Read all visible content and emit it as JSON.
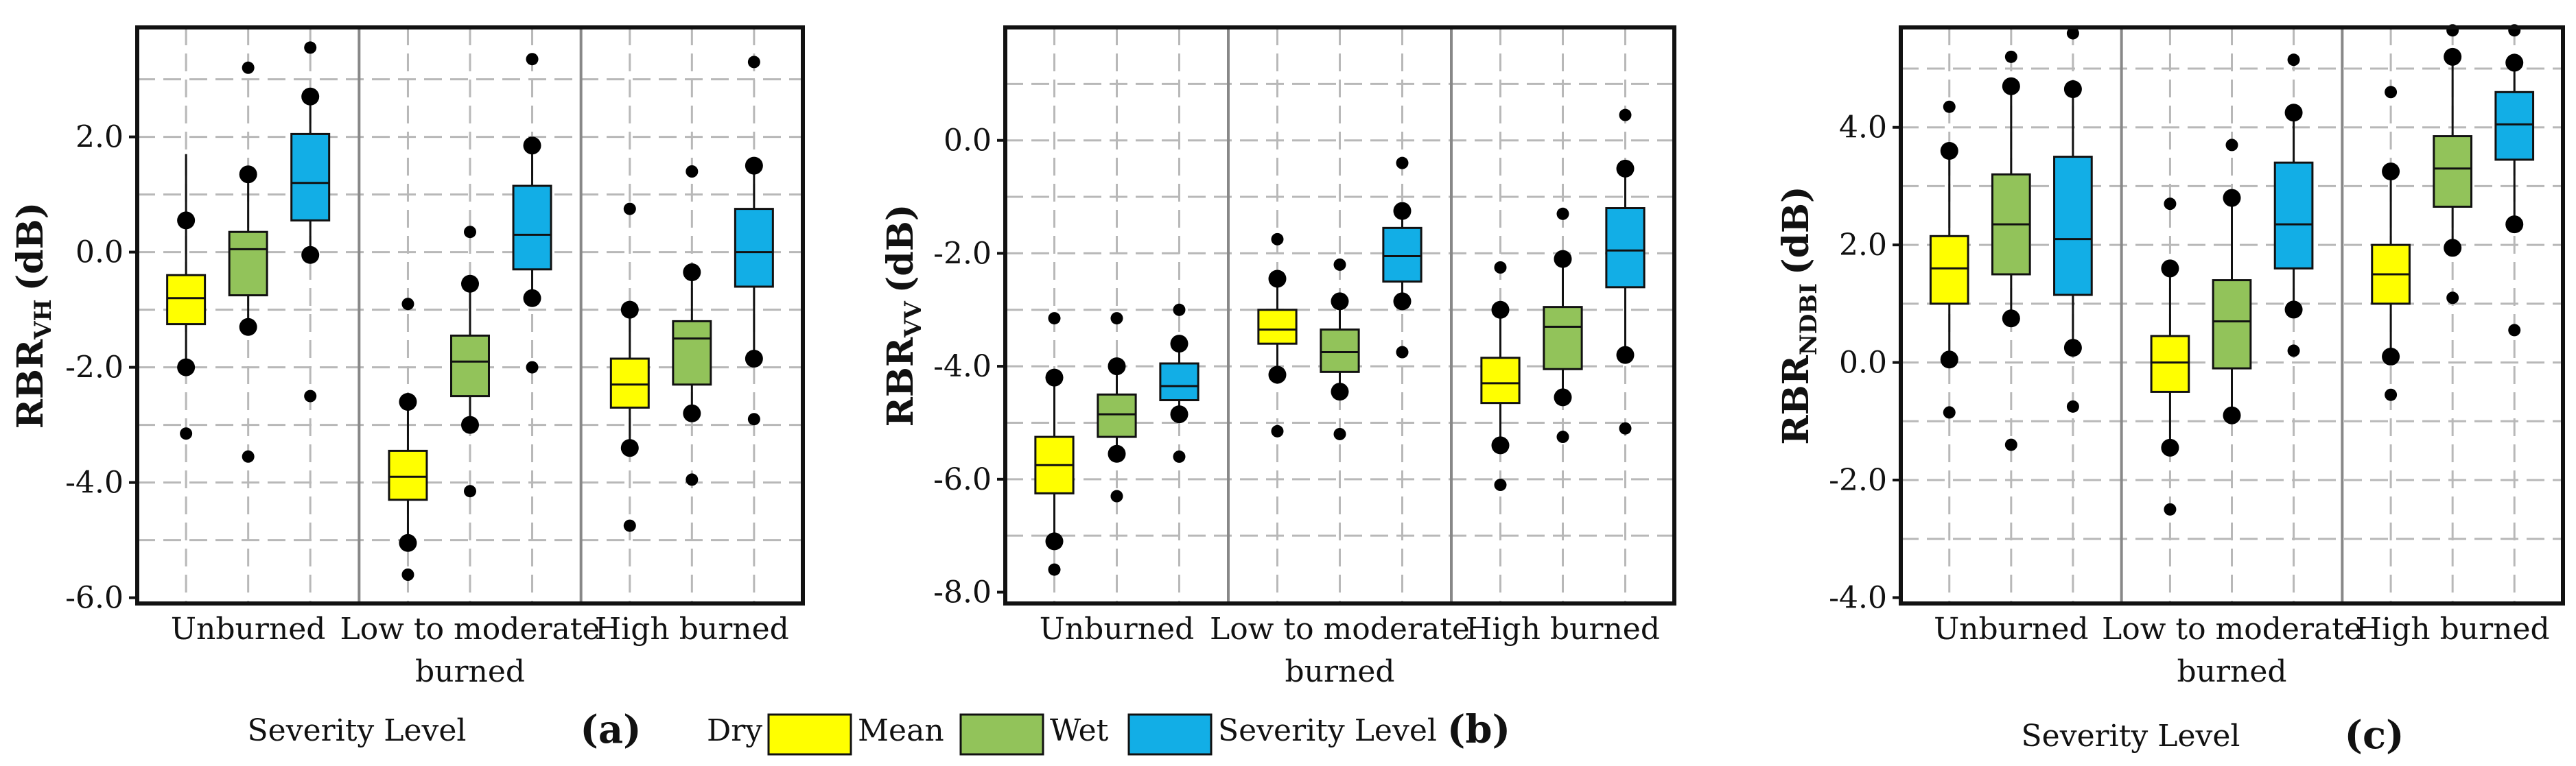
{
  "colors": {
    "dry": "#ffff00",
    "wet": "#92c35a",
    "severity": "#12aee6"
  },
  "legend": {
    "items": [
      {
        "label": "Dry",
        "swatch": ""
      },
      {
        "label": "Mean",
        "swatch": "#ffff00"
      },
      {
        "label": "Wet",
        "swatch": "#92c35a"
      },
      {
        "label": "Severity Level",
        "swatch": "#12aee6"
      }
    ]
  },
  "chart_data": [
    {
      "type": "box",
      "panel": "(a)",
      "ylabel_main": "RBR",
      "ylabel_sub": "VH",
      "ylabel_unit": "(dB)",
      "xlabel": "Severity Level",
      "ylim": [
        -6.1,
        3.9
      ],
      "yticks": [
        2.0,
        0.0,
        -2.0,
        -4.0,
        -6.0
      ],
      "ytick_labels": [
        "2.0",
        "0.0",
        "-2.0",
        "-4.0",
        "-6.0"
      ],
      "grid_y": [
        3,
        2,
        1,
        0,
        -1,
        -2,
        -3,
        -4,
        -5
      ],
      "category_label_lines": [
        [
          "Unburned"
        ],
        [
          "Low to moderate",
          "burned"
        ],
        [
          "High burned"
        ]
      ],
      "series_names": [
        "Dry",
        "Wet",
        "Severity"
      ],
      "groups": [
        {
          "boxes": [
            {
              "q1": -1.25,
              "median": -0.8,
              "q3": -0.4,
              "wlow": -2.0,
              "whigh": 1.7,
              "big": [
                0.55,
                -2.0
              ],
              "small": [
                -3.15
              ]
            },
            {
              "q1": -0.75,
              "median": 0.05,
              "q3": 0.35,
              "wlow": -1.3,
              "whigh": 1.35,
              "big": [
                1.35,
                -1.3
              ],
              "small": [
                3.2,
                -3.55
              ]
            },
            {
              "q1": 0.55,
              "median": 1.2,
              "q3": 2.05,
              "wlow": -0.05,
              "whigh": 2.7,
              "big": [
                2.7,
                -0.05
              ],
              "small": [
                3.55,
                -2.5
              ]
            }
          ]
        },
        {
          "boxes": [
            {
              "q1": -4.3,
              "median": -3.9,
              "q3": -3.45,
              "wlow": -5.05,
              "whigh": -2.6,
              "big": [
                -2.6,
                -5.05
              ],
              "small": [
                -0.9,
                -5.6
              ]
            },
            {
              "q1": -2.5,
              "median": -1.9,
              "q3": -1.45,
              "wlow": -3.0,
              "whigh": -0.55,
              "big": [
                -0.55,
                -3.0
              ],
              "small": [
                0.35,
                -4.15
              ]
            },
            {
              "q1": -0.3,
              "median": 0.3,
              "q3": 1.15,
              "wlow": -0.8,
              "whigh": 1.85,
              "big": [
                1.85,
                -0.8
              ],
              "small": [
                3.35,
                -2.0
              ]
            }
          ]
        },
        {
          "boxes": [
            {
              "q1": -2.7,
              "median": -2.3,
              "q3": -1.85,
              "wlow": -3.4,
              "whigh": -1.0,
              "big": [
                -1.0,
                -3.4
              ],
              "small": [
                0.75,
                -4.75
              ]
            },
            {
              "q1": -2.3,
              "median": -1.5,
              "q3": -1.2,
              "wlow": -2.8,
              "whigh": -0.35,
              "big": [
                -0.35,
                -2.8
              ],
              "small": [
                1.4,
                -3.95
              ]
            },
            {
              "q1": -0.6,
              "median": 0.0,
              "q3": 0.75,
              "wlow": -1.85,
              "whigh": 1.5,
              "big": [
                1.5,
                -1.85
              ],
              "small": [
                3.3,
                -2.9
              ]
            }
          ]
        }
      ]
    },
    {
      "type": "box",
      "panel": "(b)",
      "ylabel_main": "RBR",
      "ylabel_sub": "VV",
      "ylabel_unit": "(dB)",
      "xlabel": "",
      "ylim": [
        -8.2,
        2.0
      ],
      "yticks": [
        0.0,
        -2.0,
        -4.0,
        -6.0,
        -8.0
      ],
      "ytick_labels": [
        "0.0",
        "-2.0",
        "-4.0",
        "-6.0",
        "-8.0"
      ],
      "grid_y": [
        1,
        0,
        -1,
        -2,
        -3,
        -4,
        -5,
        -6,
        -7
      ],
      "category_label_lines": [
        [
          "Unburned"
        ],
        [
          "Low to moderate",
          "burned"
        ],
        [
          "High burned"
        ]
      ],
      "series_names": [
        "Dry",
        "Wet",
        "Severity"
      ],
      "groups": [
        {
          "boxes": [
            {
              "q1": -6.25,
              "median": -5.75,
              "q3": -5.25,
              "wlow": -7.1,
              "whigh": -4.2,
              "big": [
                -4.2,
                -7.1
              ],
              "small": [
                -3.15,
                -7.6
              ]
            },
            {
              "q1": -5.25,
              "median": -4.85,
              "q3": -4.5,
              "wlow": -5.55,
              "whigh": -4.0,
              "big": [
                -4.0,
                -5.55
              ],
              "small": [
                -3.15,
                -6.3
              ]
            },
            {
              "q1": -4.6,
              "median": -4.35,
              "q3": -3.95,
              "wlow": -4.85,
              "whigh": -3.6,
              "big": [
                -3.6,
                -4.85
              ],
              "small": [
                -3.0,
                -5.6
              ]
            }
          ]
        },
        {
          "boxes": [
            {
              "q1": -3.6,
              "median": -3.35,
              "q3": -3.0,
              "wlow": -4.15,
              "whigh": -2.45,
              "big": [
                -2.45,
                -4.15
              ],
              "small": [
                -1.75,
                -5.15
              ]
            },
            {
              "q1": -4.1,
              "median": -3.75,
              "q3": -3.35,
              "wlow": -4.45,
              "whigh": -2.85,
              "big": [
                -2.85,
                -4.45
              ],
              "small": [
                -2.2,
                -5.2
              ]
            },
            {
              "q1": -2.5,
              "median": -2.05,
              "q3": -1.55,
              "wlow": -2.85,
              "whigh": -1.25,
              "big": [
                -1.25,
                -2.85
              ],
              "small": [
                -0.4,
                -3.75
              ]
            }
          ]
        },
        {
          "boxes": [
            {
              "q1": -4.65,
              "median": -4.3,
              "q3": -3.85,
              "wlow": -5.4,
              "whigh": -3.0,
              "big": [
                -3.0,
                -5.4
              ],
              "small": [
                -2.25,
                -6.1
              ]
            },
            {
              "q1": -4.05,
              "median": -3.3,
              "q3": -2.95,
              "wlow": -4.55,
              "whigh": -2.1,
              "big": [
                -2.1,
                -4.55
              ],
              "small": [
                -1.3,
                -5.25
              ]
            },
            {
              "q1": -2.6,
              "median": -1.95,
              "q3": -1.2,
              "wlow": -3.8,
              "whigh": -0.5,
              "big": [
                -0.5,
                -3.8
              ],
              "small": [
                0.45,
                -5.1
              ]
            }
          ]
        }
      ]
    },
    {
      "type": "box",
      "panel": "(c)",
      "ylabel_main": "RBR",
      "ylabel_sub": "NDBI",
      "ylabel_unit": "(dB)",
      "xlabel": "Severity Level",
      "ylim": [
        -4.1,
        5.7
      ],
      "yticks": [
        4.0,
        2.0,
        0.0,
        -2.0,
        -4.0
      ],
      "ytick_labels": [
        "4.0",
        "2.0",
        "0.0",
        "-2.0",
        "-4.0"
      ],
      "grid_y": [
        5,
        4,
        3,
        2,
        1,
        0,
        -1,
        -2,
        -3
      ],
      "category_label_lines": [
        [
          "Unburned"
        ],
        [
          "Low to moderate",
          "burned"
        ],
        [
          "High burned"
        ]
      ],
      "series_names": [
        "Dry",
        "Wet",
        "Severity"
      ],
      "groups": [
        {
          "boxes": [
            {
              "q1": 1.0,
              "median": 1.6,
              "q3": 2.15,
              "wlow": 0.05,
              "whigh": 3.6,
              "big": [
                3.6,
                0.05
              ],
              "small": [
                4.35,
                -0.85
              ]
            },
            {
              "q1": 1.5,
              "median": 2.35,
              "q3": 3.2,
              "wlow": 0.75,
              "whigh": 4.7,
              "big": [
                4.7,
                0.75
              ],
              "small": [
                5.2,
                -1.4
              ]
            },
            {
              "q1": 1.15,
              "median": 2.1,
              "q3": 3.5,
              "wlow": 0.25,
              "whigh": 4.65,
              "big": [
                4.65,
                0.25
              ],
              "small": [
                5.6,
                -0.75
              ]
            }
          ]
        },
        {
          "boxes": [
            {
              "q1": -0.5,
              "median": 0.0,
              "q3": 0.45,
              "wlow": -1.45,
              "whigh": 1.6,
              "big": [
                1.6,
                -1.45
              ],
              "small": [
                2.7,
                -2.5
              ]
            },
            {
              "q1": -0.1,
              "median": 0.7,
              "q3": 1.4,
              "wlow": -0.9,
              "whigh": 2.8,
              "big": [
                2.8,
                -0.9
              ],
              "small": [
                3.7,
                null
              ]
            },
            {
              "q1": 1.6,
              "median": 2.35,
              "q3": 3.4,
              "wlow": 0.9,
              "whigh": 4.25,
              "big": [
                4.25,
                0.9
              ],
              "small": [
                5.15,
                0.2
              ]
            }
          ]
        },
        {
          "boxes": [
            {
              "q1": 1.0,
              "median": 1.5,
              "q3": 2.0,
              "wlow": 0.1,
              "whigh": 3.25,
              "big": [
                3.25,
                0.1
              ],
              "small": [
                4.6,
                -0.55
              ]
            },
            {
              "q1": 2.65,
              "median": 3.3,
              "q3": 3.85,
              "wlow": 1.95,
              "whigh": 5.2,
              "big": [
                5.2,
                1.95
              ],
              "small": [
                5.65,
                1.1
              ]
            },
            {
              "q1": 3.45,
              "median": 4.05,
              "q3": 4.6,
              "wlow": 2.35,
              "whigh": 5.1,
              "big": [
                5.1,
                2.35
              ],
              "small": [
                5.65,
                0.55
              ]
            }
          ]
        }
      ]
    }
  ]
}
